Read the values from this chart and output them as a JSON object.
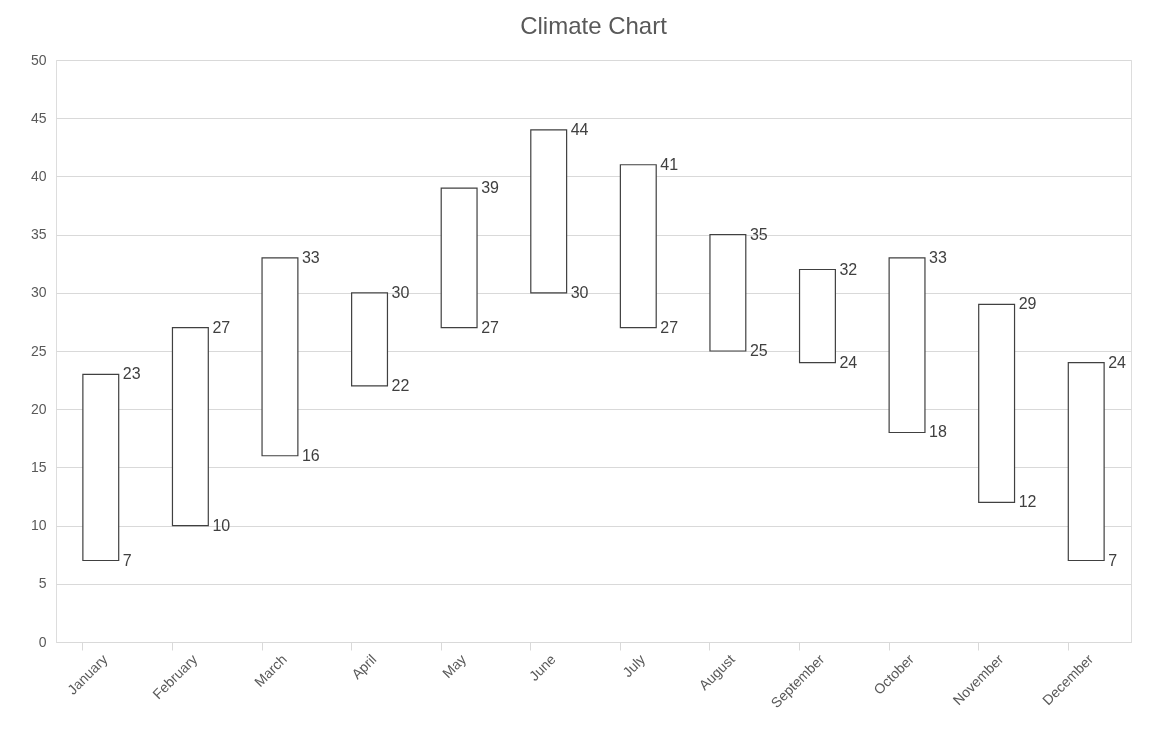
{
  "chart_data": {
    "type": "bar",
    "title": "Climate Chart",
    "categories": [
      "January",
      "February",
      "March",
      "April",
      "May",
      "June",
      "July",
      "August",
      "September",
      "October",
      "November",
      "December"
    ],
    "base": [
      7,
      10,
      16,
      22,
      27,
      30,
      27,
      25,
      24,
      18,
      12,
      7
    ],
    "values": [
      16,
      17,
      17,
      8,
      12,
      14,
      14,
      10,
      8,
      15,
      17,
      17
    ],
    "color": "#ffffff",
    "ylim": [
      0,
      50
    ],
    "yticks": [
      0,
      5,
      10,
      15,
      20,
      25,
      30,
      35,
      40,
      45,
      50
    ],
    "grid": "y",
    "annotations": [
      {
        "text": "23",
        "x": "January",
        "y": 23
      },
      {
        "text": "7",
        "x": "January",
        "y": 7
      },
      {
        "text": "27",
        "x": "February",
        "y": 27
      },
      {
        "text": "10",
        "x": "February",
        "y": 10
      },
      {
        "text": "33",
        "x": "March",
        "y": 33
      },
      {
        "text": "16",
        "x": "March",
        "y": 16
      },
      {
        "text": "30",
        "x": "April",
        "y": 30
      },
      {
        "text": "22",
        "x": "April",
        "y": 22
      },
      {
        "text": "39",
        "x": "May",
        "y": 39
      },
      {
        "text": "27",
        "x": "May",
        "y": 27
      },
      {
        "text": "44",
        "x": "June",
        "y": 44
      },
      {
        "text": "30",
        "x": "June",
        "y": 30
      },
      {
        "text": "41",
        "x": "July",
        "y": 41
      },
      {
        "text": "27",
        "x": "July",
        "y": 27
      },
      {
        "text": "35",
        "x": "August",
        "y": 35
      },
      {
        "text": "25",
        "x": "August",
        "y": 25
      },
      {
        "text": "32",
        "x": "September",
        "y": 32
      },
      {
        "text": "24",
        "x": "September",
        "y": 24
      },
      {
        "text": "33",
        "x": "October",
        "y": 33
      },
      {
        "text": "18",
        "x": "October",
        "y": 18
      },
      {
        "text": "29",
        "x": "November",
        "y": 29
      },
      {
        "text": "12",
        "x": "November",
        "y": 12
      },
      {
        "text": "24",
        "x": "December",
        "y": 24
      },
      {
        "text": "7",
        "x": "December",
        "y": 7
      }
    ]
  }
}
